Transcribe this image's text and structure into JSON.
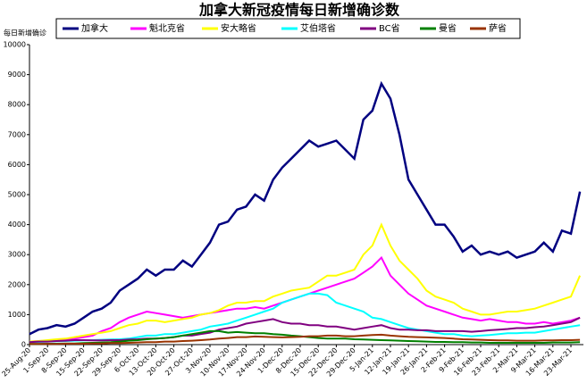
{
  "chart_data": {
    "type": "line",
    "title": "加拿大新冠疫情每日新增确诊数",
    "y_label": "每日新增确诊",
    "categories": [
      "25-Aug-20",
      null,
      "1-Sep-20",
      null,
      "8-Sep-20",
      null,
      "15-Sep-20",
      null,
      "22-Sep-20",
      null,
      "29-Sep-20",
      null,
      "6-Oct-20",
      null,
      "13-Oct-20",
      null,
      "20-Oct-20",
      null,
      "27-Oct-20",
      null,
      "3-Nov-20",
      null,
      "10-Nov-20",
      null,
      "17-Nov-20",
      null,
      "24-Nov-20",
      null,
      "1-Dec-20",
      null,
      "8-Dec-20",
      null,
      "15-Dec-20",
      null,
      "22-Dec-20",
      null,
      "29-Dec-20",
      null,
      "5-Jan-21",
      null,
      "12-Jan-21",
      null,
      "19-Jan-21",
      null,
      "26-Jan-21",
      null,
      "2-Feb-21",
      null,
      "9-Feb-21",
      null,
      "16-Feb-21",
      null,
      "23-Feb-21",
      null,
      "2-Mar-21",
      null,
      "9-Mar-21",
      null,
      "16-Mar-21",
      null,
      "23-Mar-21",
      null
    ],
    "series": [
      {
        "name": "加拿大",
        "color": "#000080",
        "values": [
          350,
          500,
          550,
          650,
          600,
          700,
          900,
          1100,
          1200,
          1400,
          1800,
          2000,
          2200,
          2500,
          2300,
          2500,
          2500,
          2800,
          2600,
          3000,
          3400,
          4000,
          4100,
          4500,
          4600,
          5000,
          4800,
          5500,
          5900,
          6200,
          6500,
          6800,
          6600,
          6700,
          6800,
          6500,
          6200,
          7500,
          7800,
          8700,
          8200,
          7000,
          5500,
          5000,
          4500,
          4000,
          4000,
          3600,
          3100,
          3300,
          3000,
          3100,
          3000,
          3100,
          2900,
          3000,
          3100,
          3400,
          3100,
          3800,
          3700,
          5100
        ]
      },
      {
        "name": "魁北克省",
        "color": "#ff00ff",
        "values": [
          100,
          120,
          130,
          150,
          180,
          200,
          250,
          300,
          450,
          550,
          750,
          900,
          1000,
          1100,
          1050,
          1000,
          950,
          900,
          950,
          1000,
          1050,
          1100,
          1150,
          1200,
          1200,
          1250,
          1200,
          1300,
          1400,
          1500,
          1600,
          1700,
          1800,
          1900,
          2000,
          2100,
          2200,
          2400,
          2600,
          2900,
          2300,
          2000,
          1700,
          1500,
          1300,
          1200,
          1100,
          1000,
          900,
          850,
          800,
          850,
          800,
          750,
          750,
          700,
          700,
          750,
          700,
          750,
          800,
          900
        ]
      },
      {
        "name": "安大略省",
        "color": "#ffff00",
        "values": [
          100,
          120,
          150,
          180,
          200,
          250,
          300,
          350,
          400,
          450,
          550,
          650,
          700,
          800,
          800,
          750,
          800,
          850,
          900,
          1000,
          1050,
          1150,
          1300,
          1400,
          1400,
          1450,
          1450,
          1600,
          1700,
          1800,
          1850,
          1900,
          2100,
          2300,
          2300,
          2400,
          2500,
          3000,
          3300,
          4000,
          3300,
          2800,
          2500,
          2200,
          1800,
          1600,
          1500,
          1400,
          1200,
          1100,
          1000,
          1000,
          1050,
          1100,
          1100,
          1150,
          1200,
          1300,
          1400,
          1500,
          1600,
          2300
        ]
      },
      {
        "name": "艾伯塔省",
        "color": "#00ffff",
        "values": [
          80,
          90,
          100,
          110,
          120,
          130,
          140,
          150,
          160,
          170,
          180,
          200,
          250,
          300,
          300,
          350,
          350,
          400,
          450,
          500,
          600,
          650,
          700,
          800,
          900,
          1000,
          1100,
          1200,
          1400,
          1500,
          1600,
          1700,
          1700,
          1650,
          1400,
          1300,
          1200,
          1100,
          900,
          850,
          750,
          650,
          550,
          500,
          450,
          400,
          350,
          350,
          300,
          280,
          300,
          320,
          350,
          380,
          380,
          400,
          400,
          450,
          500,
          550,
          600,
          650
        ]
      },
      {
        "name": "BC省",
        "color": "#800080",
        "values": [
          80,
          100,
          100,
          120,
          130,
          150,
          150,
          140,
          140,
          150,
          150,
          170,
          180,
          200,
          200,
          220,
          250,
          300,
          300,
          350,
          400,
          500,
          550,
          600,
          700,
          750,
          800,
          850,
          750,
          700,
          700,
          650,
          650,
          600,
          600,
          550,
          500,
          550,
          600,
          650,
          550,
          500,
          500,
          480,
          480,
          450,
          450,
          450,
          450,
          430,
          450,
          480,
          500,
          520,
          550,
          550,
          580,
          600,
          650,
          700,
          750,
          900
        ]
      },
      {
        "name": "曼省",
        "color": "#008000",
        "values": [
          20,
          25,
          30,
          30,
          40,
          40,
          50,
          60,
          70,
          80,
          100,
          130,
          150,
          180,
          200,
          220,
          250,
          300,
          350,
          400,
          450,
          450,
          400,
          420,
          400,
          380,
          380,
          350,
          330,
          300,
          280,
          250,
          220,
          200,
          200,
          200,
          180,
          170,
          160,
          150,
          140,
          130,
          120,
          110,
          100,
          90,
          90,
          80,
          80,
          70,
          70,
          60,
          60,
          60,
          60,
          60,
          60,
          60,
          70,
          70,
          70,
          80
        ]
      },
      {
        "name": "萨省",
        "color": "#993300",
        "values": [
          20,
          20,
          20,
          25,
          30,
          30,
          30,
          40,
          40,
          50,
          50,
          60,
          70,
          80,
          80,
          100,
          100,
          120,
          130,
          150,
          170,
          200,
          220,
          250,
          250,
          270,
          260,
          250,
          240,
          250,
          260,
          280,
          280,
          300,
          300,
          280,
          280,
          300,
          320,
          330,
          300,
          280,
          260,
          250,
          240,
          230,
          220,
          200,
          180,
          170,
          160,
          150,
          140,
          140,
          130,
          130,
          130,
          140,
          140,
          150,
          150,
          160
        ]
      }
    ],
    "ylim": [
      0,
      10000
    ],
    "yticks": [
      0,
      1000,
      2000,
      3000,
      4000,
      5000,
      6000,
      7000,
      8000,
      9000,
      10000
    ],
    "grid": false
  }
}
